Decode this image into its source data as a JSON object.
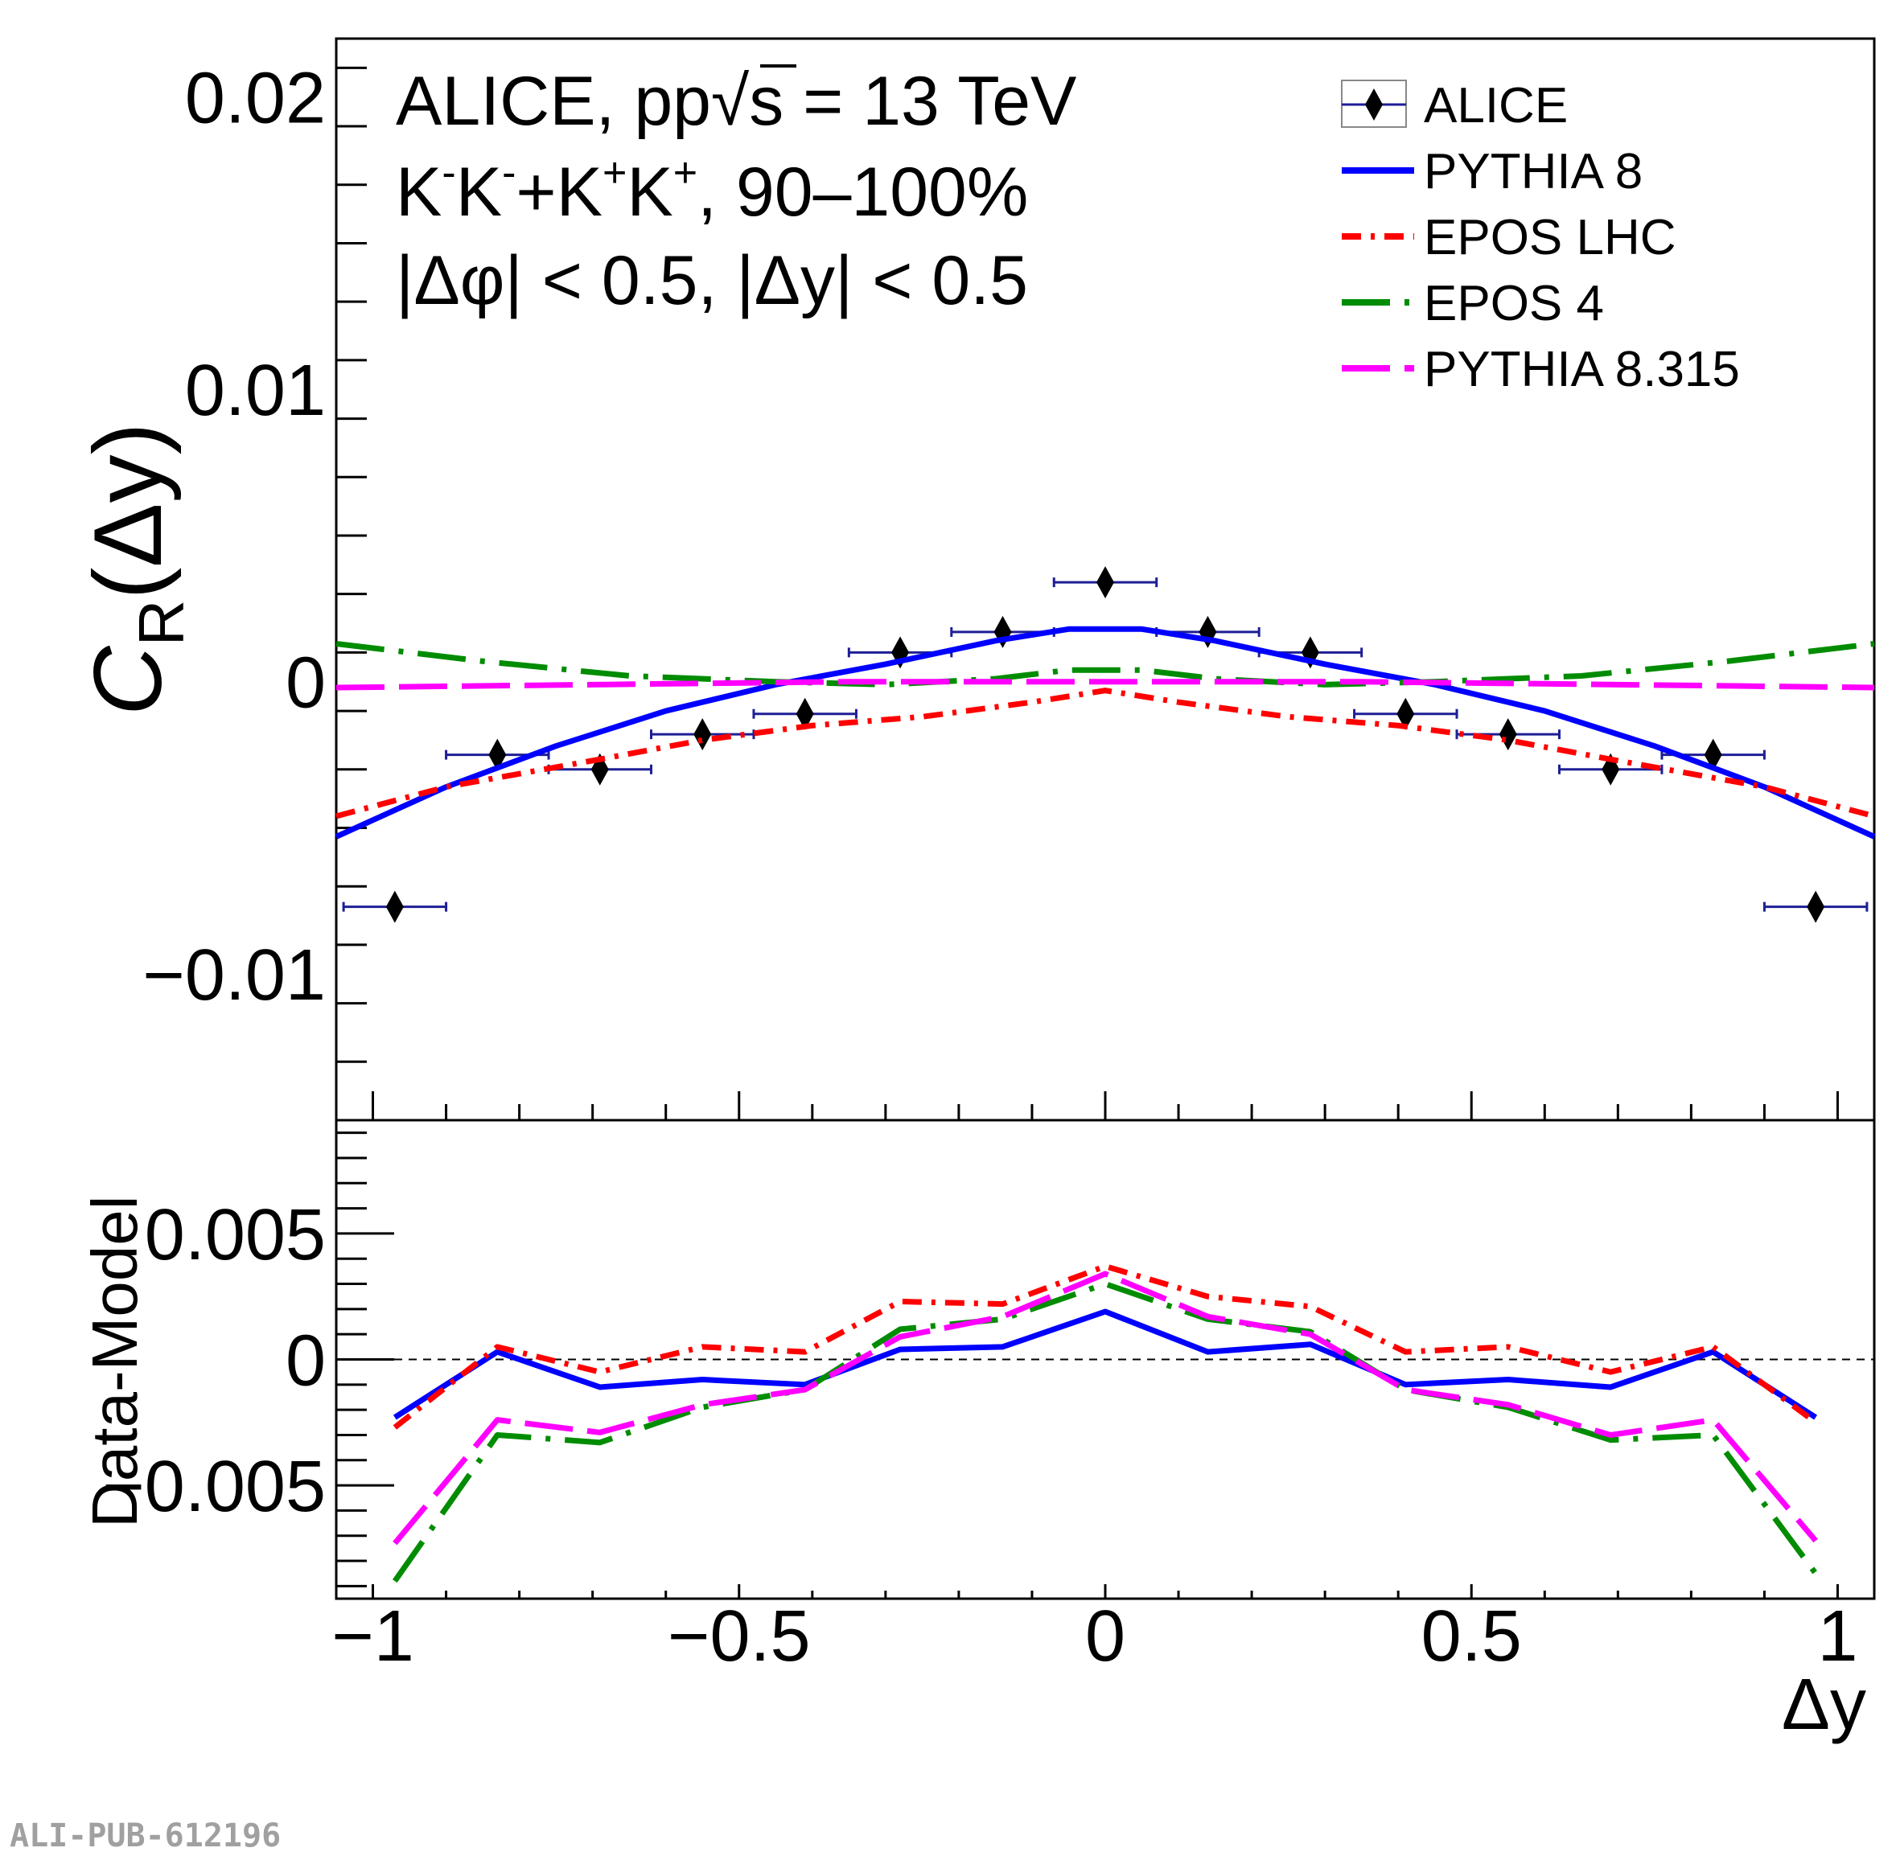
{
  "figure_id": "ALI-PUB-612196",
  "annotations": {
    "line1_prefix": "ALICE, pp",
    "line1_sqrt": "s",
    "line1_suffix": " = 13 TeV",
    "line2_k1": "K",
    "line2_sup1": "-",
    "line2_k2": "K",
    "line2_sup2": "-",
    "line2_plus": "+K",
    "line2_sup3": "+",
    "line2_k4": "K",
    "line2_sup4": "+",
    "line2_suffix": ", 90–100%",
    "line3": "|Δφ| < 0.5, |Δy| < 0.5"
  },
  "colors": {
    "ALICE": "#000000",
    "ALICE_err": "#1e1e96",
    "PYTHIA 8": "#0000ff",
    "EPOS LHC": "#ff0000",
    "EPOS 4": "#008c00",
    "PYTHIA 8.315": "#ff00ff"
  },
  "chart_data": [
    {
      "type": "scatter",
      "panel": "top",
      "xlabel": "",
      "ylabel": "C_R(Δy)",
      "ylabel_main": "C",
      "ylabel_sub": "R",
      "ylabel_arg": "(Δy)",
      "xlim": [
        -1.05,
        1.05
      ],
      "ylim": [
        -0.015,
        0.022
      ],
      "y_ticks": [
        -0.01,
        0,
        0.01,
        0.02
      ],
      "y_tick_labels": [
        "−0.01",
        "0",
        "0.01",
        "0.02"
      ],
      "legend_position": "top-right",
      "legend": [
        "ALICE",
        "PYTHIA 8",
        "EPOS LHC",
        "EPOS 4",
        "PYTHIA 8.315"
      ],
      "series": [
        {
          "name": "ALICE",
          "style": "markers",
          "x": [
            -0.97,
            -0.83,
            -0.69,
            -0.55,
            -0.41,
            -0.28,
            -0.14,
            0.0,
            0.14,
            0.28,
            0.41,
            0.55,
            0.69,
            0.83,
            0.97
          ],
          "y": [
            -0.0077,
            -0.0025,
            -0.003,
            -0.0018,
            -0.0011,
            0.001,
            0.0017,
            0.0034,
            0.0017,
            0.001,
            -0.0011,
            -0.0018,
            -0.003,
            -0.0025,
            -0.0077
          ],
          "xerr": 0.07
        },
        {
          "name": "PYTHIA 8",
          "style": "solid",
          "x": [
            -1.05,
            -0.9,
            -0.75,
            -0.6,
            -0.45,
            -0.3,
            -0.15,
            -0.05,
            0.0,
            0.05,
            0.15,
            0.3,
            0.45,
            0.6,
            0.75,
            0.9,
            1.05
          ],
          "y": [
            -0.0053,
            -0.0036,
            -0.0022,
            -0.001,
            -0.0001,
            0.0006,
            0.0014,
            0.0018,
            0.0018,
            0.0018,
            0.0014,
            0.0006,
            -0.0001,
            -0.001,
            -0.0022,
            -0.0036,
            -0.0053
          ]
        },
        {
          "name": "EPOS LHC",
          "style": "dashdot",
          "x": [
            -1.05,
            -0.9,
            -0.7,
            -0.55,
            -0.4,
            -0.25,
            -0.1,
            0.0,
            0.1,
            0.25,
            0.4,
            0.55,
            0.7,
            0.9,
            1.05
          ],
          "y": [
            -0.0046,
            -0.0036,
            -0.0027,
            -0.002,
            -0.0015,
            -0.0012,
            -0.0007,
            -0.0003,
            -0.0007,
            -0.0012,
            -0.0015,
            -0.002,
            -0.0027,
            -0.0036,
            -0.0046
          ]
        },
        {
          "name": "EPOS 4",
          "style": "longdashdot",
          "x": [
            -1.05,
            -0.85,
            -0.65,
            -0.45,
            -0.3,
            -0.15,
            -0.05,
            0.0,
            0.05,
            0.15,
            0.3,
            0.45,
            0.65,
            0.85,
            1.05
          ],
          "y": [
            0.0013,
            0.0007,
            0.0002,
            0.0,
            -0.0001,
            0.0001,
            0.0004,
            0.0004,
            0.0004,
            0.0001,
            -0.0001,
            0.0,
            0.0002,
            0.0007,
            0.0013
          ]
        },
        {
          "name": "PYTHIA 8.315",
          "style": "longdash",
          "x": [
            -1.05,
            -0.7,
            -0.35,
            0.0,
            0.35,
            0.7,
            1.05
          ],
          "y": [
            -0.0002,
            -0.0001,
            0.0,
            0.0,
            0.0,
            -0.0001,
            -0.0002
          ]
        }
      ]
    },
    {
      "type": "line",
      "panel": "bottom",
      "xlabel": "Δy",
      "ylabel": "Data-Model",
      "xlim": [
        -1.05,
        1.05
      ],
      "ylim": [
        -0.0095,
        0.0095
      ],
      "x_ticks": [
        -1,
        -0.5,
        0,
        0.5,
        1
      ],
      "x_tick_labels": [
        "−1",
        "−0.5",
        "0",
        "0.5",
        "1"
      ],
      "y_ticks": [
        -0.005,
        0,
        0.005
      ],
      "y_tick_labels": [
        "−0.005",
        "0",
        "0.005"
      ],
      "reference_line": 0,
      "x": [
        -0.97,
        -0.83,
        -0.69,
        -0.55,
        -0.41,
        -0.28,
        -0.14,
        0.0,
        0.14,
        0.28,
        0.41,
        0.55,
        0.69,
        0.83,
        0.97
      ],
      "series": [
        {
          "name": "PYTHIA 8",
          "style": "solid",
          "y": [
            -0.0023,
            0.0003,
            -0.0011,
            -0.0008,
            -0.001,
            0.0004,
            0.0005,
            0.0019,
            0.0003,
            0.0006,
            -0.001,
            -0.0008,
            -0.0011,
            0.0003,
            -0.0023
          ]
        },
        {
          "name": "EPOS LHC",
          "style": "dashdot",
          "y": [
            -0.0027,
            0.0005,
            -0.0005,
            0.0005,
            0.0003,
            0.0023,
            0.0022,
            0.0037,
            0.0025,
            0.0021,
            0.0003,
            0.0005,
            -0.0005,
            0.0005,
            -0.0025
          ]
        },
        {
          "name": "EPOS 4",
          "style": "longdashdot",
          "y": [
            -0.0088,
            -0.003,
            -0.0033,
            -0.0019,
            -0.0012,
            0.0012,
            0.0016,
            0.003,
            0.0016,
            0.0011,
            -0.0012,
            -0.0019,
            -0.0032,
            -0.003,
            -0.0085
          ]
        },
        {
          "name": "PYTHIA 8.315",
          "style": "longdash",
          "y": [
            -0.0073,
            -0.0024,
            -0.0029,
            -0.0018,
            -0.0012,
            0.0009,
            0.0017,
            0.0034,
            0.0017,
            0.001,
            -0.0012,
            -0.0018,
            -0.003,
            -0.0024,
            -0.0072
          ]
        }
      ]
    }
  ]
}
